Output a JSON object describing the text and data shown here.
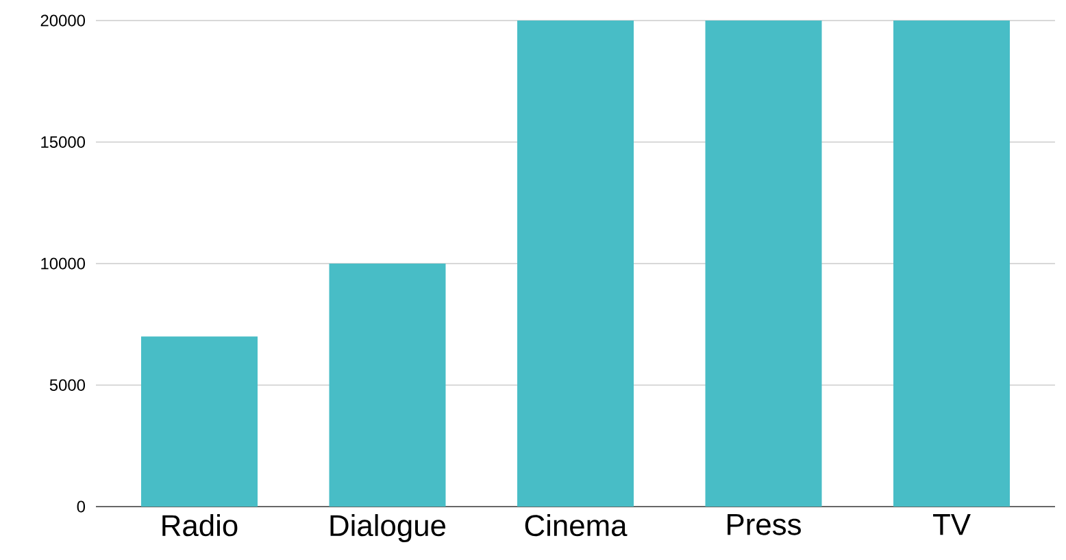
{
  "chart_data": {
    "type": "bar",
    "categories": [
      "Radio",
      "Dialogue",
      "Cinema",
      "Press",
      "TV"
    ],
    "values": [
      7000,
      10000,
      20000,
      20000,
      20000
    ],
    "color": "#48bdc6",
    "ylim": [
      0,
      20000
    ],
    "yticks": [
      0,
      5000,
      10000,
      15000,
      20000
    ],
    "grid": "y"
  }
}
